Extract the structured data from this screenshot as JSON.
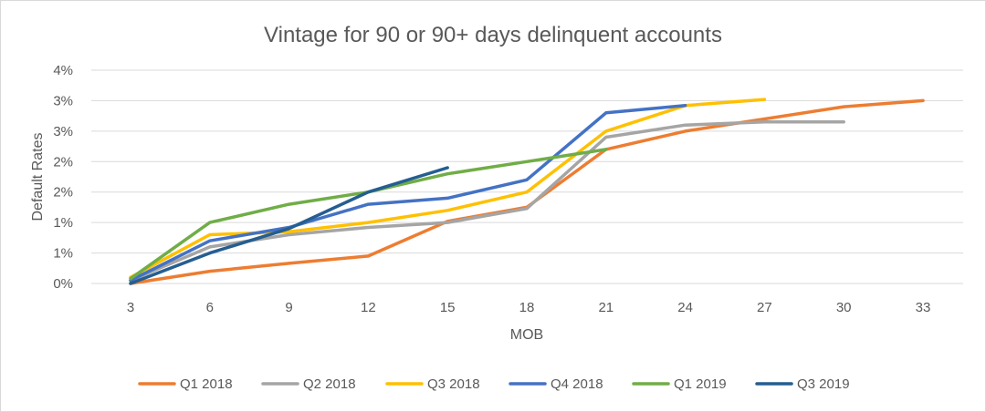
{
  "chart_data": {
    "type": "line",
    "title": "Vintage for 90 or 90+ days delinquent accounts",
    "xlabel": "MOB",
    "ylabel": "Default Rates",
    "x": [
      3,
      6,
      9,
      12,
      15,
      18,
      21,
      24,
      27,
      30,
      33
    ],
    "x_tick_labels": [
      "3",
      "6",
      "9",
      "12",
      "15",
      "18",
      "21",
      "24",
      "27",
      "30",
      "33"
    ],
    "y_tick_labels": [
      "0%",
      "1%",
      "1%",
      "2%",
      "2%",
      "3%",
      "3%",
      "4%"
    ],
    "ylim": [
      0,
      3.5
    ],
    "grid": "horizontal",
    "legend_position": "bottom",
    "series": [
      {
        "name": "Q1 2018",
        "color": "#ED7D31",
        "values": [
          0,
          0.2,
          0.33,
          0.45,
          1.02,
          1.25,
          2.2,
          2.5,
          2.7,
          2.9,
          3.0
        ]
      },
      {
        "name": "Q2 2018",
        "color": "#A5A5A5",
        "values": [
          0.05,
          0.6,
          0.8,
          0.92,
          1.0,
          1.23,
          2.4,
          2.6,
          2.65,
          2.65,
          null
        ]
      },
      {
        "name": "Q3 2018",
        "color": "#FFC000",
        "values": [
          0.1,
          0.8,
          0.85,
          1.0,
          1.2,
          1.5,
          2.5,
          2.92,
          3.02,
          null,
          null
        ]
      },
      {
        "name": "Q4 2018",
        "color": "#4472C4",
        "values": [
          0.05,
          0.7,
          0.92,
          1.3,
          1.4,
          1.7,
          2.8,
          2.92,
          null,
          null,
          null
        ]
      },
      {
        "name": "Q1 2019",
        "color": "#70AD47",
        "values": [
          0.08,
          1.0,
          1.3,
          1.5,
          1.8,
          2.0,
          2.2,
          null,
          null,
          null,
          null
        ]
      },
      {
        "name": "Q3 2019",
        "color": "#255E91",
        "values": [
          0.0,
          0.5,
          0.9,
          1.5,
          1.9,
          null,
          null,
          null,
          null,
          null,
          null
        ]
      }
    ]
  }
}
